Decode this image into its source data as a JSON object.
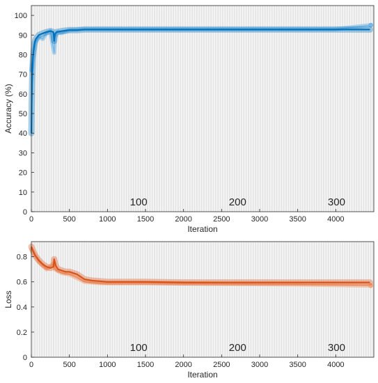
{
  "chart_data": [
    {
      "type": "line",
      "xlabel": "Iteration",
      "ylabel": "Accuracy (%)",
      "xlim": [
        0,
        4500
      ],
      "ylim": [
        0,
        105
      ],
      "xticks": [
        0,
        500,
        1000,
        1500,
        2000,
        2500,
        3000,
        3500,
        4000
      ],
      "yticks": [
        0,
        10,
        20,
        30,
        40,
        50,
        60,
        70,
        80,
        90,
        100
      ],
      "epoch_labels": [
        {
          "text": "100",
          "x": 1410
        },
        {
          "text": "200",
          "x": 2710
        },
        {
          "text": "300",
          "x": 4010
        }
      ],
      "epoch_line_interval_iterations": 13,
      "grid": "vertical epoch lines",
      "series": [
        {
          "role": "training",
          "color": "#0072BD",
          "x": [
            1,
            5,
            10,
            15,
            20,
            30,
            40,
            50,
            60,
            80,
            100,
            130,
            160,
            200,
            250,
            290,
            300,
            310,
            330,
            400,
            500,
            600,
            700,
            1000,
            1500,
            2000,
            2500,
            3000,
            3500,
            4000,
            4450
          ],
          "y": [
            40,
            55,
            66,
            72,
            78,
            82,
            85,
            87,
            88,
            89,
            90,
            90.5,
            91,
            91.5,
            92,
            91.5,
            87,
            90.5,
            91.5,
            92,
            92.5,
            92.5,
            92.8,
            92.8,
            92.8,
            92.8,
            92.8,
            92.8,
            92.8,
            92.8,
            92.8
          ]
        },
        {
          "role": "validation",
          "color": "#77B7E5",
          "x": [
            1,
            50,
            100,
            150,
            200,
            250,
            300,
            310,
            350,
            400,
            500,
            700,
            1000,
            2000,
            3000,
            4000,
            4460
          ],
          "y": [
            72,
            86,
            89,
            88,
            91,
            92,
            81,
            89,
            91.5,
            91,
            92.5,
            93,
            93,
            93,
            93,
            93,
            95
          ]
        }
      ]
    },
    {
      "type": "line",
      "xlabel": "Iteration",
      "ylabel": "Loss",
      "xlim": [
        0,
        4500
      ],
      "ylim": [
        0,
        0.92
      ],
      "xticks": [
        0,
        500,
        1000,
        1500,
        2000,
        2500,
        3000,
        3500,
        4000
      ],
      "yticks": [
        0,
        0.2,
        0.4,
        0.6,
        0.8
      ],
      "epoch_labels": [
        {
          "text": "100",
          "x": 1410
        },
        {
          "text": "200",
          "x": 2710
        },
        {
          "text": "300",
          "x": 4010
        }
      ],
      "epoch_line_interval_iterations": 13,
      "grid": "vertical epoch lines",
      "series": [
        {
          "role": "training",
          "color": "#D95319",
          "x": [
            1,
            20,
            50,
            100,
            150,
            200,
            250,
            290,
            300,
            320,
            350,
            400,
            450,
            500,
            600,
            700,
            800,
            1000,
            1500,
            2000,
            2500,
            3000,
            3500,
            4000,
            4450
          ],
          "y": [
            0.88,
            0.85,
            0.81,
            0.77,
            0.74,
            0.72,
            0.71,
            0.72,
            0.78,
            0.73,
            0.7,
            0.69,
            0.68,
            0.68,
            0.66,
            0.62,
            0.61,
            0.6,
            0.6,
            0.595,
            0.595,
            0.595,
            0.595,
            0.595,
            0.595
          ]
        },
        {
          "role": "validation",
          "color": "#F2A57F",
          "x": [
            1,
            100,
            200,
            300,
            310,
            400,
            500,
            700,
            900,
            1500,
            2500,
            3500,
            4460
          ],
          "y": [
            0.86,
            0.76,
            0.7,
            0.75,
            0.7,
            0.67,
            0.66,
            0.6,
            0.59,
            0.59,
            0.585,
            0.58,
            0.57
          ]
        }
      ]
    }
  ]
}
